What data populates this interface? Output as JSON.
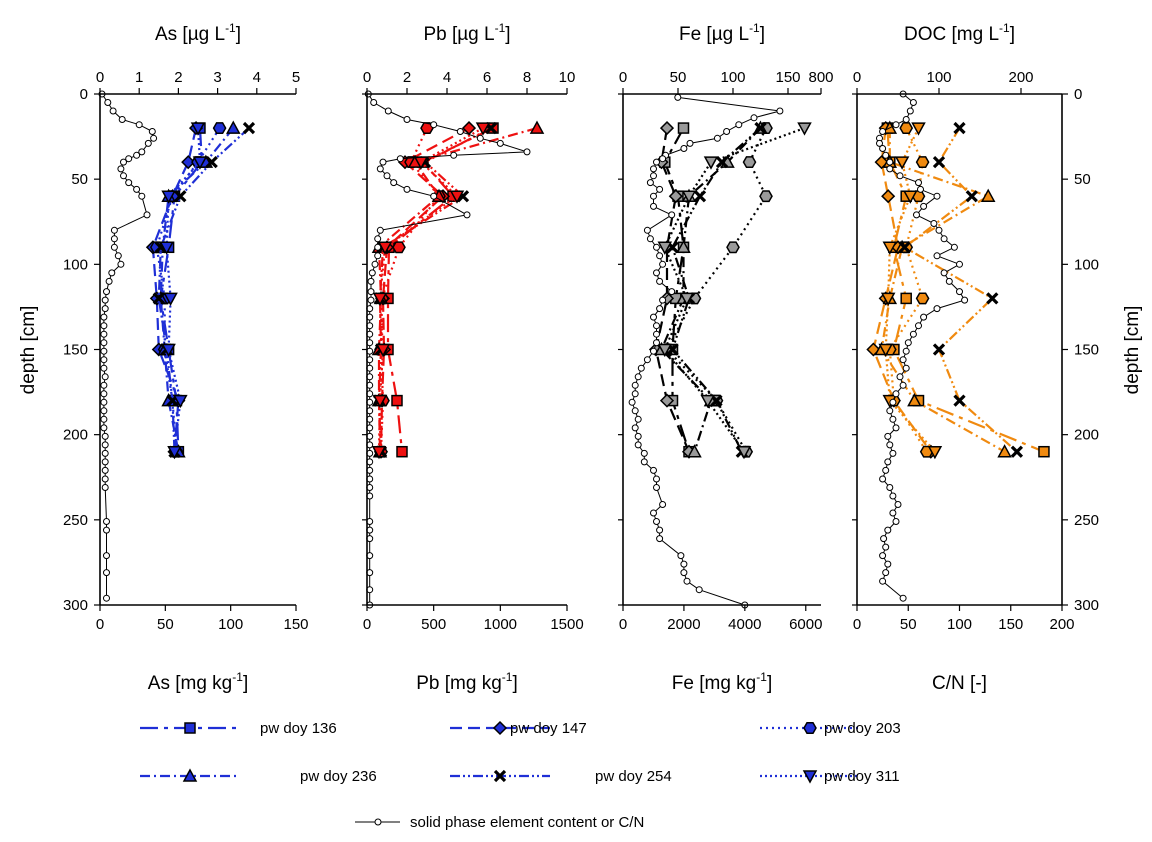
{
  "y_axis": {
    "label": "depth [cm]",
    "ticks": [
      "0",
      "50",
      "100",
      "150",
      "200",
      "250",
      "300"
    ],
    "range": [
      0,
      300
    ],
    "inverted": true
  },
  "chart_data": [
    {
      "type": "scatter",
      "element": "As",
      "top_axis": {
        "label": "As [µg L",
        "superscript": "-1",
        "label_end": "]",
        "ticks": [
          "0",
          "1",
          "2",
          "3",
          "4",
          "5"
        ],
        "range": [
          0,
          5
        ]
      },
      "bottom_axis": {
        "label": "As [mg kg",
        "superscript": "-1",
        "label_end": "]",
        "ticks": [
          "0",
          "50",
          "100",
          "150"
        ],
        "range": [
          0,
          150
        ]
      },
      "series_color": "#1f2fd6",
      "solid_phase": {
        "x": [
          1.5,
          6,
          10,
          17,
          30,
          40,
          41,
          37,
          32,
          28,
          22,
          18,
          16,
          18,
          22,
          28,
          32,
          36,
          11,
          11,
          11,
          14,
          16,
          9,
          7,
          5,
          4,
          4,
          3,
          3,
          3,
          3,
          3,
          3,
          3,
          4,
          3,
          3,
          3,
          3,
          3,
          3,
          4,
          4,
          4,
          4,
          4,
          4,
          4,
          5,
          5,
          5,
          5,
          5
        ],
        "y": [
          0,
          5,
          10,
          15,
          18,
          22,
          26,
          29,
          34,
          36,
          38,
          40,
          44,
          48,
          52,
          56,
          60,
          71,
          80,
          85,
          90,
          95,
          100,
          105,
          110,
          116,
          121,
          126,
          131,
          136,
          141,
          146,
          151,
          156,
          161,
          166,
          171,
          176,
          181,
          186,
          191,
          196,
          201,
          206,
          211,
          216,
          221,
          226,
          231,
          251,
          256,
          271,
          281,
          296
        ]
      },
      "porewater": [
        {
          "name": "pw doy 136",
          "x": [
            2.55,
            2.6,
            1.9,
            1.75,
            1.55,
            1.75,
            1.95,
            2.0
          ],
          "y": [
            20,
            40,
            60,
            90,
            120,
            150,
            180,
            210
          ]
        },
        {
          "name": "pw doy 147",
          "x": [
            2.45,
            2.25,
            1.85,
            1.35,
            1.45,
            1.5,
            2.0,
            1.9
          ],
          "y": [
            20,
            40,
            60,
            90,
            120,
            150,
            180,
            210
          ]
        },
        {
          "name": "pw doy 203",
          "x": [
            3.05,
            2.5,
            1.85,
            1.45,
            1.65,
            1.65,
            1.85,
            1.95
          ],
          "y": [
            20,
            40,
            60,
            90,
            120,
            150,
            180,
            210
          ]
        },
        {
          "name": "pw doy 236",
          "x": [
            3.4,
            2.7,
            1.75,
            1.6,
            1.55,
            1.65,
            1.75,
            2.0
          ],
          "y": [
            20,
            40,
            60,
            90,
            120,
            150,
            180,
            210
          ]
        },
        {
          "name": "pw doy 254",
          "x": [
            3.8,
            2.85,
            2.05,
            1.55,
            1.5,
            1.7,
            1.85,
            1.9
          ],
          "y": [
            20,
            40,
            60,
            90,
            120,
            150,
            180,
            210
          ]
        },
        {
          "name": "pw doy 311",
          "x": [
            2.5,
            2.55,
            1.75,
            1.7,
            1.8,
            1.75,
            2.05,
            1.9
          ],
          "y": [
            20,
            40,
            60,
            90,
            120,
            150,
            180,
            210
          ]
        }
      ]
    },
    {
      "type": "scatter",
      "element": "Pb",
      "top_axis": {
        "label": "Pb [µg L",
        "superscript": "-1",
        "label_end": "]",
        "ticks": [
          "0",
          "2",
          "4",
          "6",
          "8",
          "10"
        ],
        "range": [
          0,
          10
        ]
      },
      "bottom_axis": {
        "label": "Pb [mg kg",
        "superscript": "-1",
        "label_end": "]",
        "ticks": [
          "0",
          "500",
          "1000",
          "1500"
        ],
        "range": [
          0,
          1500
        ]
      },
      "series_color": "#ee1111",
      "solid_phase": {
        "x": [
          10,
          50,
          160,
          300,
          500,
          700,
          850,
          1000,
          1200,
          650,
          250,
          120,
          100,
          150,
          200,
          300,
          500,
          750,
          100,
          80,
          80,
          80,
          60,
          40,
          30,
          30,
          30,
          20,
          20,
          20,
          20,
          20,
          20,
          20,
          20,
          20,
          20,
          20,
          20,
          20,
          20,
          20,
          20,
          20,
          20,
          20,
          20,
          20,
          20,
          20,
          20,
          20,
          20,
          20,
          20,
          20,
          20
        ],
        "y": [
          0,
          5,
          10,
          15,
          18,
          22,
          26,
          29,
          34,
          36,
          38,
          40,
          44,
          48,
          52,
          56,
          60,
          71,
          80,
          85,
          90,
          95,
          100,
          105,
          110,
          116,
          121,
          126,
          131,
          136,
          141,
          146,
          151,
          156,
          161,
          166,
          171,
          176,
          181,
          186,
          191,
          196,
          201,
          206,
          211,
          216,
          221,
          226,
          231,
          236,
          251,
          256,
          261,
          271,
          281,
          291,
          300
        ]
      },
      "porewater": [
        {
          "name": "pw doy 136",
          "x": [
            6.3,
            2.8,
            4.3,
            1.1,
            1.05,
            1.05,
            1.5,
            1.75
          ],
          "y": [
            20,
            40,
            60,
            90,
            120,
            150,
            180,
            210
          ]
        },
        {
          "name": "pw doy 147",
          "x": [
            5.1,
            1.9,
            3.8,
            1.0,
            0.8,
            0.85,
            0.75,
            0.7
          ],
          "y": [
            20,
            40,
            60,
            90,
            120,
            150,
            180,
            210
          ]
        },
        {
          "name": "pw doy 203",
          "x": [
            3.0,
            2.2,
            3.6,
            1.6,
            0.75,
            0.7,
            0.8,
            0.7
          ],
          "y": [
            20,
            40,
            60,
            90,
            120,
            150,
            180,
            210
          ]
        },
        {
          "name": "pw doy 236",
          "x": [
            8.5,
            2.4,
            3.6,
            0.6,
            0.7,
            0.6,
            0.6,
            0.65
          ],
          "y": [
            20,
            40,
            60,
            90,
            120,
            150,
            180,
            210
          ]
        },
        {
          "name": "pw doy 254",
          "x": [
            6.2,
            2.9,
            4.8,
            0.8,
            0.65,
            0.7,
            0.6,
            0.7
          ],
          "y": [
            20,
            40,
            60,
            90,
            120,
            150,
            180,
            210
          ]
        },
        {
          "name": "pw doy 311",
          "x": [
            5.8,
            2.7,
            4.5,
            0.9,
            0.65,
            0.8,
            0.65,
            0.6
          ],
          "y": [
            20,
            40,
            60,
            90,
            120,
            150,
            180,
            210
          ]
        }
      ]
    },
    {
      "type": "scatter",
      "element": "Fe",
      "top_axis": {
        "label": "Fe [µg L",
        "superscript": "-1",
        "label_end": "]",
        "ticks": [
          "0",
          "50",
          "100",
          "150",
          "800"
        ],
        "range": [
          0,
          180
        ]
      },
      "bottom_axis": {
        "label": "Fe [mg kg",
        "superscript": "-1",
        "label_end": "]",
        "ticks": [
          "0",
          "2000",
          "4000",
          "6000"
        ],
        "range": [
          0,
          6500
        ]
      },
      "series_color": "#000000",
      "solid_phase": {
        "x": [
          1800,
          5150,
          4300,
          3800,
          3400,
          3100,
          2200,
          2000,
          1400,
          1300,
          1100,
          1000,
          1000,
          900,
          1200,
          1000,
          1000,
          1600,
          800,
          900,
          1100,
          1200,
          1300,
          1100,
          1200,
          1600,
          1300,
          1200,
          1000,
          1100,
          1100,
          1100,
          1000,
          800,
          600,
          500,
          400,
          400,
          300,
          400,
          500,
          400,
          500,
          500,
          700,
          700,
          1000,
          1100,
          1100,
          1300,
          1000,
          1100,
          1200,
          1200,
          1900,
          2000,
          2000,
          2100,
          2500,
          4000
        ],
        "y": [
          2,
          10,
          14,
          18,
          22,
          26,
          29,
          32,
          36,
          38,
          40,
          44,
          48,
          52,
          56,
          60,
          66,
          71,
          80,
          85,
          90,
          95,
          100,
          105,
          110,
          116,
          121,
          126,
          131,
          136,
          141,
          146,
          151,
          156,
          161,
          166,
          171,
          176,
          181,
          186,
          191,
          196,
          201,
          206,
          211,
          216,
          221,
          226,
          231,
          241,
          246,
          251,
          256,
          261,
          271,
          276,
          281,
          286,
          291,
          300
        ]
      },
      "porewater": [
        {
          "name": "pw doy 136",
          "x": [
            55,
            38,
            50,
            55,
            48,
            45,
            45,
            60
          ],
          "y": [
            20,
            40,
            60,
            90,
            120,
            150,
            180,
            210
          ]
        },
        {
          "name": "pw doy 147",
          "x": [
            40,
            35,
            48,
            40,
            40,
            30,
            40,
            60
          ],
          "y": [
            20,
            40,
            60,
            90,
            120,
            150,
            180,
            210
          ]
        },
        {
          "name": "pw doy 203",
          "x": [
            130,
            115,
            130,
            100,
            65,
            40,
            85,
            112
          ],
          "y": [
            20,
            40,
            60,
            90,
            120,
            150,
            180,
            210
          ]
        },
        {
          "name": "pw doy 236",
          "x": [
            125,
            95,
            60,
            55,
            55,
            35,
            80,
            65
          ],
          "y": [
            20,
            40,
            60,
            90,
            120,
            150,
            180,
            210
          ]
        },
        {
          "name": "pw doy 254",
          "x": [
            125,
            90,
            70,
            45,
            60,
            45,
            85,
            108
          ],
          "y": [
            20,
            40,
            60,
            90,
            120,
            150,
            180,
            210
          ]
        },
        {
          "name": "pw doy 311",
          "x": [
            165,
            80,
            60,
            38,
            58,
            38,
            77,
            110
          ],
          "y": [
            20,
            40,
            60,
            90,
            120,
            150,
            180,
            210
          ]
        }
      ]
    },
    {
      "type": "scatter",
      "element": "DOC",
      "top_axis": {
        "label": "DOC [mg L",
        "superscript": "-1",
        "label_end": "]",
        "ticks": [
          "0",
          "100",
          "200"
        ],
        "range": [
          0,
          250
        ]
      },
      "bottom_axis": {
        "label": "C/N [-]",
        "superscript": "",
        "label_end": "",
        "ticks": [
          "0",
          "50",
          "100",
          "150",
          "200"
        ],
        "range": [
          0,
          200
        ]
      },
      "series_color": "#f08a10",
      "right_axis_label": "depth [cm]",
      "solid_phase": {
        "x": [
          45,
          55,
          52,
          48,
          38,
          25,
          22,
          22,
          25,
          28,
          32,
          32,
          42,
          60,
          62,
          78,
          65,
          58,
          75,
          80,
          85,
          95,
          78,
          100,
          85,
          90,
          100,
          105,
          78,
          65,
          60,
          55,
          50,
          48,
          45,
          48,
          42,
          45,
          38,
          35,
          32,
          35,
          38,
          30,
          32,
          35,
          30,
          28,
          25,
          32,
          35,
          40,
          35,
          38,
          30,
          26,
          28,
          25,
          30,
          28,
          25,
          45
        ],
        "y": [
          0,
          5,
          10,
          15,
          18,
          22,
          26,
          29,
          32,
          36,
          40,
          44,
          48,
          52,
          56,
          60,
          66,
          71,
          76,
          80,
          85,
          90,
          95,
          100,
          105,
          110,
          116,
          121,
          126,
          131,
          136,
          141,
          146,
          151,
          156,
          161,
          166,
          171,
          176,
          181,
          186,
          191,
          196,
          201,
          206,
          211,
          216,
          221,
          226,
          231,
          236,
          241,
          246,
          251,
          256,
          261,
          266,
          271,
          276,
          281,
          286,
          296
        ]
      },
      "porewater": [
        {
          "name": "pw doy 136",
          "x": [
            37,
            40,
            60,
            45,
            60,
            45,
            75,
            228
          ],
          "y": [
            20,
            40,
            60,
            90,
            120,
            150,
            180,
            210
          ]
        },
        {
          "name": "pw doy 147",
          "x": [
            35,
            30,
            38,
            50,
            35,
            20,
            45,
            90
          ],
          "y": [
            20,
            40,
            60,
            90,
            120,
            150,
            180,
            210
          ]
        },
        {
          "name": "pw doy 203",
          "x": [
            60,
            80,
            75,
            60,
            80,
            40,
            45,
            85
          ],
          "y": [
            20,
            40,
            60,
            90,
            120,
            150,
            180,
            210
          ]
        },
        {
          "name": "pw doy 236",
          "x": [
            40,
            40,
            160,
            55,
            40,
            30,
            70,
            180
          ],
          "y": [
            20,
            40,
            60,
            90,
            120,
            150,
            180,
            210
          ]
        },
        {
          "name": "pw doy 254",
          "x": [
            125,
            100,
            140,
            58,
            165,
            100,
            125,
            195
          ],
          "y": [
            20,
            40,
            60,
            90,
            120,
            150,
            180,
            210
          ]
        },
        {
          "name": "pw doy 311",
          "x": [
            75,
            55,
            65,
            40,
            38,
            35,
            40,
            95
          ],
          "y": [
            20,
            40,
            60,
            90,
            120,
            150,
            180,
            210
          ]
        }
      ]
    }
  ],
  "legend": {
    "items": [
      {
        "label": "pw doy 136",
        "marker": "square",
        "dash": "18,6,4,6"
      },
      {
        "label": "pw doy 147",
        "marker": "diamond",
        "dash": "12,6"
      },
      {
        "label": "pw doy 203",
        "marker": "hexagon",
        "dash": "2,4"
      },
      {
        "label": "pw doy 236",
        "marker": "triangle-up",
        "dash": "10,4,2,4"
      },
      {
        "label": "pw doy 254",
        "marker": "x",
        "dash": "10,3,2,3,2,3"
      },
      {
        "label": "pw doy 311",
        "marker": "triangle-down",
        "dash": "2,3"
      }
    ],
    "solid_label": "solid phase element content or C/N"
  }
}
